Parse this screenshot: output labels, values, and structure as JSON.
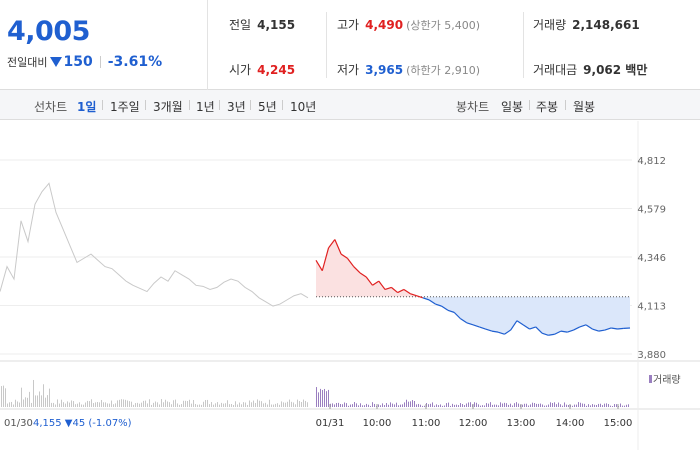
{
  "quote": {
    "price": "4,005",
    "change_label": "전일대비",
    "change_amount": "150",
    "change_pct": "-3.61%"
  },
  "stats": {
    "prev_close_label": "전일",
    "prev_close": "4,155",
    "open_label": "시가",
    "open": "4,245",
    "high_label": "고가",
    "high": "4,490",
    "upper_limit": "(상한가 5,400)",
    "low_label": "저가",
    "low": "3,965",
    "lower_limit": "(하한가 2,910)",
    "volume_label": "거래량",
    "volume": "2,148,661",
    "value_label": "거래대금",
    "value": "9,062 백만"
  },
  "toolbar": {
    "line_label": "선차트",
    "periods": [
      "1일",
      "1주일",
      "3개월",
      "1년",
      "3년",
      "5년",
      "10년"
    ],
    "active_period": "1일",
    "candle_label": "봉차트",
    "candles": [
      "일봉",
      "주봉",
      "월봉"
    ]
  },
  "chart_data": {
    "type": "line",
    "y_ticks": [
      "4,812",
      "4,579",
      "4,346",
      "4,113",
      "3,880"
    ],
    "ylim": [
      3880,
      4812
    ],
    "reference_price": 4155,
    "volume_legend": "거래량",
    "prev_day_label": "01/30",
    "prev_day_info": "4,155 ▼45 (-1.07%)",
    "x_ticks": [
      "01/31",
      "10:00",
      "11:00",
      "12:00",
      "13:00",
      "14:00",
      "15:00"
    ],
    "prev_day_series": [
      4180,
      4300,
      4240,
      4520,
      4420,
      4600,
      4660,
      4700,
      4560,
      4480,
      4400,
      4320,
      4340,
      4360,
      4330,
      4300,
      4290,
      4260,
      4230,
      4210,
      4195,
      4180,
      4220,
      4250,
      4230,
      4280,
      4260,
      4240,
      4210,
      4205,
      4190,
      4200,
      4225,
      4240,
      4230,
      4200,
      4180,
      4150,
      4130,
      4110,
      4120,
      4140,
      4160,
      4170,
      4150
    ],
    "today_series": [
      4330,
      4280,
      4390,
      4430,
      4360,
      4340,
      4300,
      4270,
      4250,
      4210,
      4230,
      4190,
      4200,
      4175,
      4190,
      4170,
      4160,
      4150,
      4140,
      4120,
      4110,
      4090,
      4080,
      4050,
      4030,
      4020,
      4010,
      4000,
      3990,
      3985,
      3975,
      3995,
      4040,
      4020,
      4000,
      4010,
      3980,
      3970,
      3975,
      3990,
      3985,
      3995,
      4010,
      4020,
      4000,
      3990,
      3995,
      4005,
      4000,
      4003,
      4005
    ]
  },
  "colors": {
    "up": "#e02020",
    "down": "#1f5fd0",
    "prev_line": "#c9c9c9",
    "down_fill": "#dbe7fa",
    "up_fill": "#fbe1e1"
  }
}
